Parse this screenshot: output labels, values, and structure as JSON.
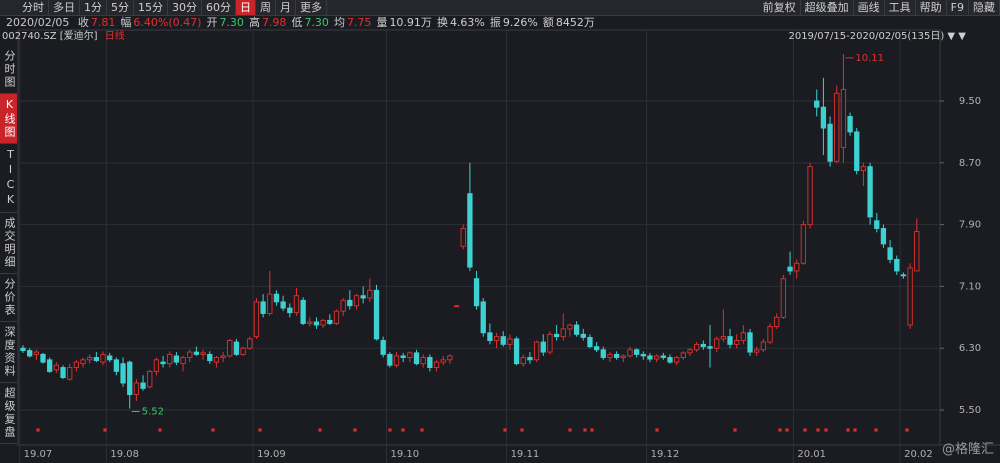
{
  "toolbar": {
    "tabs": [
      "分时",
      "多日",
      "1分",
      "5分",
      "15分",
      "30分",
      "60分",
      "日",
      "周",
      "月",
      "更多"
    ],
    "active_tab": 7,
    "tools": [
      "前复权",
      "超级叠加",
      "画线",
      "工具",
      "帮助",
      "F9",
      "隐藏"
    ]
  },
  "info": {
    "date": "2020/02/05",
    "items": [
      {
        "label": "收",
        "value": "7.81",
        "color": "#e0302f"
      },
      {
        "label": "幅",
        "value": "6.40%(0.47)",
        "color": "#e0302f"
      },
      {
        "label": "开",
        "value": "7.30",
        "color": "#3ec46d"
      },
      {
        "label": "高",
        "value": "7.98",
        "color": "#e0302f"
      },
      {
        "label": "低",
        "value": "7.30",
        "color": "#3ec46d"
      },
      {
        "label": "均",
        "value": "7.75",
        "color": "#e0302f"
      },
      {
        "label": "量",
        "value": "10.91万",
        "color": "#cfcfcf"
      },
      {
        "label": "换",
        "value": "4.63%",
        "color": "#cfcfcf"
      },
      {
        "label": "振",
        "value": "9.26%",
        "color": "#cfcfcf"
      },
      {
        "label": "额",
        "value": "8452万",
        "color": "#cfcfcf"
      }
    ]
  },
  "stock": {
    "code": "002740.SZ",
    "name": "[爱迪尔]",
    "kind": "日线",
    "range": "2019/07/15-2020/02/05(135日)"
  },
  "sidebar": {
    "items": [
      "分时图",
      "K线图",
      "TICK",
      "成交明细",
      "分价表",
      "深度资料",
      "超级复盘"
    ],
    "active": 1
  },
  "watermark": "@格隆汇",
  "chart_data": {
    "type": "candlestick",
    "up_color": "#e0302f",
    "down_color": "#3ed1d1",
    "grid": true,
    "ylim": [
      5.345,
      10.225
    ],
    "yticks": [
      {
        "value": 5.5,
        "label": "5.50"
      },
      {
        "value": 6.3,
        "label": "6.30"
      },
      {
        "value": 7.1,
        "label": "7.10"
      },
      {
        "value": 7.9,
        "label": "7.90"
      },
      {
        "value": 8.7,
        "label": "8.70"
      },
      {
        "value": 9.5,
        "label": "9.50"
      }
    ],
    "annotations": [
      {
        "text": "5.52",
        "at": "low",
        "color": "#3ec46d"
      },
      {
        "text": "10.11",
        "at": "high",
        "color": "#e0302f"
      }
    ],
    "categories": [
      "19.07",
      null,
      null,
      null,
      null,
      null,
      null,
      null,
      null,
      null,
      null,
      null,
      null,
      "19.08",
      null,
      null,
      null,
      null,
      null,
      null,
      null,
      null,
      null,
      null,
      null,
      null,
      null,
      null,
      null,
      null,
      null,
      null,
      null,
      null,
      null,
      "19.09",
      null,
      null,
      null,
      null,
      null,
      null,
      null,
      null,
      null,
      null,
      null,
      null,
      null,
      null,
      null,
      null,
      null,
      null,
      null,
      "19.10",
      null,
      null,
      null,
      null,
      null,
      null,
      null,
      null,
      null,
      null,
      null,
      null,
      null,
      null,
      null,
      null,
      null,
      "19.11",
      null,
      null,
      null,
      null,
      null,
      null,
      null,
      null,
      null,
      null,
      null,
      null,
      null,
      null,
      null,
      null,
      null,
      null,
      null,
      null,
      "19.12",
      null,
      null,
      null,
      null,
      null,
      null,
      null,
      null,
      null,
      null,
      null,
      null,
      null,
      null,
      null,
      null,
      null,
      null,
      null,
      null,
      null,
      "20.01",
      null,
      null,
      null,
      null,
      null,
      null,
      null,
      null,
      null,
      null,
      null,
      null,
      null,
      null,
      null,
      "20.02",
      null,
      null
    ],
    "ohlc": [
      [
        6.3,
        6.34,
        6.24,
        6.27
      ],
      [
        6.27,
        6.3,
        6.18,
        6.2
      ],
      [
        6.22,
        6.28,
        6.15,
        6.25
      ],
      [
        6.22,
        6.24,
        6.1,
        6.12
      ],
      [
        6.15,
        6.18,
        5.98,
        6.0
      ],
      [
        6.02,
        6.12,
        5.98,
        6.08
      ],
      [
        6.05,
        6.08,
        5.9,
        5.92
      ],
      [
        5.9,
        6.1,
        5.88,
        6.05
      ],
      [
        6.05,
        6.15,
        6.0,
        6.12
      ],
      [
        6.1,
        6.18,
        6.05,
        6.15
      ],
      [
        6.15,
        6.22,
        6.1,
        6.18
      ],
      [
        6.18,
        6.25,
        6.12,
        6.14
      ],
      [
        6.12,
        6.26,
        6.08,
        6.22
      ],
      [
        6.2,
        6.24,
        6.12,
        6.15
      ],
      [
        6.15,
        6.18,
        5.95,
        6.0
      ],
      [
        6.1,
        6.18,
        5.8,
        5.85
      ],
      [
        6.12,
        6.14,
        5.52,
        5.7
      ],
      [
        5.7,
        5.9,
        5.62,
        5.85
      ],
      [
        5.85,
        5.95,
        5.75,
        5.78
      ],
      [
        5.8,
        6.02,
        5.78,
        6.0
      ],
      [
        6.0,
        6.18,
        5.95,
        6.15
      ],
      [
        6.12,
        6.2,
        6.05,
        6.1
      ],
      [
        6.1,
        6.26,
        6.05,
        6.22
      ],
      [
        6.2,
        6.25,
        6.08,
        6.12
      ],
      [
        6.1,
        6.2,
        6.0,
        6.18
      ],
      [
        6.18,
        6.28,
        6.12,
        6.25
      ],
      [
        6.25,
        6.32,
        6.2,
        6.22
      ],
      [
        6.22,
        6.28,
        6.15,
        6.24
      ],
      [
        6.22,
        6.26,
        6.1,
        6.14
      ],
      [
        6.12,
        6.2,
        6.05,
        6.18
      ],
      [
        6.18,
        6.25,
        6.12,
        6.2
      ],
      [
        6.2,
        6.42,
        6.18,
        6.4
      ],
      [
        6.38,
        6.42,
        6.2,
        6.22
      ],
      [
        6.22,
        6.32,
        6.2,
        6.3
      ],
      [
        6.3,
        6.45,
        6.28,
        6.42
      ],
      [
        6.45,
        6.95,
        6.42,
        6.9
      ],
      [
        6.9,
        7.0,
        6.7,
        6.75
      ],
      [
        6.75,
        7.3,
        6.72,
        7.0
      ],
      [
        7.0,
        7.05,
        6.85,
        6.9
      ],
      [
        6.9,
        6.98,
        6.78,
        6.82
      ],
      [
        6.82,
        6.88,
        6.7,
        6.76
      ],
      [
        6.76,
        7.08,
        6.72,
        6.98
      ],
      [
        6.92,
        6.96,
        6.6,
        6.62
      ],
      [
        6.62,
        6.7,
        6.58,
        6.64
      ],
      [
        6.64,
        6.7,
        6.55,
        6.6
      ],
      [
        6.6,
        6.68,
        6.56,
        6.66
      ],
      [
        6.66,
        6.74,
        6.6,
        6.62
      ],
      [
        6.62,
        6.8,
        6.6,
        6.78
      ],
      [
        6.78,
        6.95,
        6.72,
        6.92
      ],
      [
        6.92,
        7.05,
        6.8,
        6.85
      ],
      [
        6.85,
        7.0,
        6.8,
        6.98
      ],
      [
        6.98,
        7.1,
        6.88,
        6.95
      ],
      [
        6.95,
        7.2,
        6.9,
        7.05
      ],
      [
        7.05,
        7.12,
        6.4,
        6.42
      ],
      [
        6.4,
        6.45,
        6.18,
        6.22
      ],
      [
        6.22,
        6.25,
        6.05,
        6.08
      ],
      [
        6.08,
        6.25,
        6.05,
        6.2
      ],
      [
        6.2,
        6.24,
        6.12,
        6.18
      ],
      [
        6.18,
        6.26,
        6.12,
        6.24
      ],
      [
        6.24,
        6.28,
        6.08,
        6.1
      ],
      [
        6.1,
        6.22,
        6.05,
        6.18
      ],
      [
        6.18,
        6.22,
        6.0,
        6.05
      ],
      [
        6.05,
        6.15,
        6.0,
        6.12
      ],
      [
        6.12,
        6.2,
        6.08,
        6.15
      ],
      [
        6.15,
        6.22,
        6.1,
        6.2
      ],
      [
        6.85,
        6.86,
        6.84,
        6.85
      ],
      [
        7.62,
        7.9,
        7.58,
        7.85
      ],
      [
        8.3,
        8.7,
        7.3,
        7.35
      ],
      [
        7.2,
        7.3,
        6.8,
        6.85
      ],
      [
        6.9,
        6.95,
        6.45,
        6.5
      ],
      [
        6.5,
        6.62,
        6.35,
        6.4
      ],
      [
        6.4,
        6.5,
        6.3,
        6.45
      ],
      [
        6.45,
        6.52,
        6.32,
        6.35
      ],
      [
        6.35,
        6.48,
        6.28,
        6.42
      ],
      [
        6.42,
        6.45,
        6.08,
        6.1
      ],
      [
        6.1,
        6.22,
        6.06,
        6.18
      ],
      [
        6.18,
        6.25,
        6.1,
        6.15
      ],
      [
        6.15,
        6.4,
        6.12,
        6.38
      ],
      [
        6.38,
        6.48,
        6.2,
        6.25
      ],
      [
        6.25,
        6.52,
        6.22,
        6.48
      ],
      [
        6.48,
        6.6,
        6.4,
        6.45
      ],
      [
        6.45,
        6.75,
        6.4,
        6.55
      ],
      [
        6.55,
        6.62,
        6.45,
        6.6
      ],
      [
        6.6,
        6.65,
        6.45,
        6.48
      ],
      [
        6.48,
        6.55,
        6.4,
        6.44
      ],
      [
        6.44,
        6.48,
        6.3,
        6.32
      ],
      [
        6.32,
        6.38,
        6.25,
        6.28
      ],
      [
        6.28,
        6.32,
        6.15,
        6.18
      ],
      [
        6.18,
        6.25,
        6.12,
        6.22
      ],
      [
        6.22,
        6.26,
        6.15,
        6.18
      ],
      [
        6.18,
        6.22,
        6.12,
        6.2
      ],
      [
        6.2,
        6.32,
        6.18,
        6.28
      ],
      [
        6.28,
        6.3,
        6.18,
        6.22
      ],
      [
        6.22,
        6.26,
        6.15,
        6.2
      ],
      [
        6.2,
        6.24,
        6.12,
        6.16
      ],
      [
        6.16,
        6.22,
        6.12,
        6.2
      ],
      [
        6.2,
        6.24,
        6.15,
        6.18
      ],
      [
        6.18,
        6.22,
        6.1,
        6.12
      ],
      [
        6.12,
        6.2,
        6.08,
        6.18
      ],
      [
        6.18,
        6.26,
        6.15,
        6.24
      ],
      [
        6.24,
        6.3,
        6.2,
        6.28
      ],
      [
        6.28,
        6.38,
        6.25,
        6.35
      ],
      [
        6.35,
        6.4,
        6.28,
        6.32
      ],
      [
        6.32,
        6.6,
        6.05,
        6.3
      ],
      [
        6.3,
        6.45,
        6.25,
        6.42
      ],
      [
        6.42,
        6.8,
        6.38,
        6.45
      ],
      [
        6.45,
        6.55,
        6.3,
        6.35
      ],
      [
        6.35,
        6.48,
        6.3,
        6.4
      ],
      [
        6.4,
        6.6,
        6.35,
        6.5
      ],
      [
        6.5,
        6.55,
        6.2,
        6.25
      ],
      [
        6.25,
        6.32,
        6.2,
        6.28
      ],
      [
        6.28,
        6.42,
        6.25,
        6.38
      ],
      [
        6.38,
        6.62,
        6.35,
        6.58
      ],
      [
        6.58,
        6.75,
        6.55,
        6.7
      ],
      [
        6.7,
        7.25,
        6.68,
        7.2
      ],
      [
        7.35,
        7.55,
        7.25,
        7.3
      ],
      [
        7.3,
        7.45,
        7.2,
        7.4
      ],
      [
        7.4,
        7.95,
        7.38,
        7.9
      ],
      [
        7.9,
        8.7,
        7.85,
        8.65
      ],
      [
        9.5,
        9.65,
        9.3,
        9.42
      ],
      [
        9.42,
        9.8,
        8.8,
        9.15
      ],
      [
        9.2,
        9.3,
        8.65,
        8.72
      ],
      [
        8.72,
        9.7,
        8.7,
        9.6
      ],
      [
        8.9,
        10.11,
        8.7,
        9.65
      ],
      [
        9.3,
        9.35,
        9.05,
        9.1
      ],
      [
        9.1,
        9.15,
        8.55,
        8.6
      ],
      [
        8.6,
        8.7,
        8.4,
        8.65
      ],
      [
        8.65,
        8.7,
        7.9,
        8.0
      ],
      [
        7.95,
        8.05,
        7.8,
        7.85
      ],
      [
        7.85,
        7.9,
        7.6,
        7.65
      ],
      [
        7.6,
        7.7,
        7.4,
        7.45
      ],
      [
        7.45,
        7.5,
        7.25,
        7.3
      ],
      [
        7.25,
        7.28,
        7.2,
        7.24
      ],
      [
        6.6,
        7.4,
        6.55,
        7.34
      ],
      [
        7.3,
        7.98,
        7.3,
        7.81
      ]
    ]
  }
}
